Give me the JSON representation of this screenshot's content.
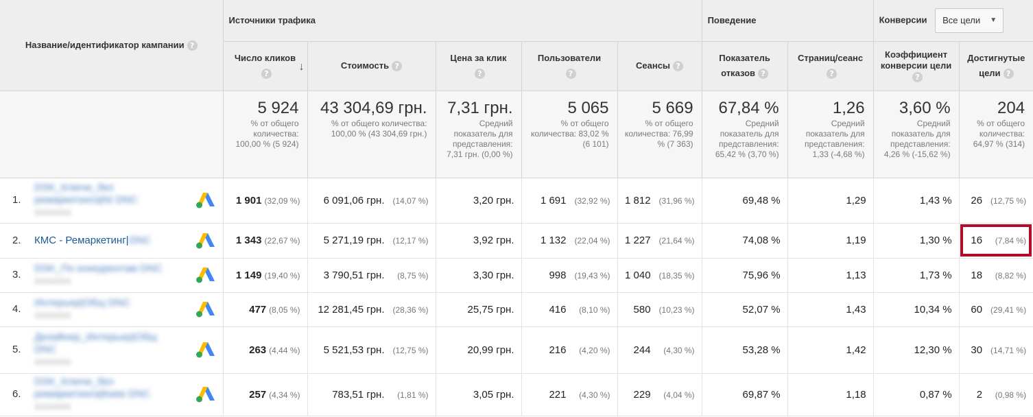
{
  "header": {
    "campaign": "Название/идентификатор кампании",
    "groups": {
      "traffic": "Источники трафика",
      "behavior": "Поведение",
      "conversions": "Конверсии"
    },
    "goal_select": "Все цели",
    "columns": {
      "clicks": "Число кликов",
      "cost": "Стоимость",
      "cpc": "Цена за клик",
      "users": "Пользователи",
      "sessions": "Сеансы",
      "bounce": "Показатель отказов",
      "pages": "Страниц/сеанс",
      "conv_rate": "Коэффициент конверсии цели",
      "goals": "Достигнутые цели"
    },
    "help": "?"
  },
  "summary": {
    "clicks": {
      "value": "5 924",
      "sub": "% от общего количества: 100,00 % (5 924)"
    },
    "cost": {
      "value": "43 304,69 грн.",
      "sub": "% от общего количества: 100,00 % (43 304,69 грн.)"
    },
    "cpc": {
      "value": "7,31 грн.",
      "sub": "Средний показатель для представления: 7,31 грн. (0,00 %)"
    },
    "users": {
      "value": "5 065",
      "sub": "% от общего количества: 83,02 % (6 101)"
    },
    "sessions": {
      "value": "5 669",
      "sub": "% от общего количества: 76,99 % (7 363)"
    },
    "bounce": {
      "value": "67,84 %",
      "sub": "Средний показатель для представления: 65,42 % (3,70 %)"
    },
    "pages": {
      "value": "1,26",
      "sub": "Средний показатель для представления: 1,33 (-4,68 %)"
    },
    "conv_rate": {
      "value": "3,60 %",
      "sub": "Средний показатель для представления: 4,26 % (-15,62 %)"
    },
    "goals": {
      "value": "204",
      "sub": "% от общего количества: 64,97 % (314)"
    }
  },
  "rows": [
    {
      "idx": "1.",
      "name": "DSK_Ключи_без ремаркетинга|NI DNC",
      "id": "1111111111",
      "clicks": "1 901",
      "clicks_pct": "(32,09 %)",
      "cost": "6 091,06 грн.",
      "cost_pct": "(14,07 %)",
      "cpc": "3,20 грн.",
      "users": "1 691",
      "users_pct": "(32,92 %)",
      "sessions": "1 812",
      "sessions_pct": "(31,96 %)",
      "bounce": "69,48 %",
      "pages": "1,29",
      "conv_rate": "1,43 %",
      "goals": "26",
      "goals_pct": "(12,75 %)"
    },
    {
      "idx": "2.",
      "name": "КМС - Ремаркетинг|",
      "name_blur": "DNC",
      "id": "",
      "clicks": "1 343",
      "clicks_pct": "(22,67 %)",
      "cost": "5 271,19 грн.",
      "cost_pct": "(12,17 %)",
      "cpc": "3,92 грн.",
      "users": "1 132",
      "users_pct": "(22,04 %)",
      "sessions": "1 227",
      "sessions_pct": "(21,64 %)",
      "bounce": "74,08 %",
      "pages": "1,19",
      "conv_rate": "1,30 %",
      "goals": "16",
      "goals_pct": "(7,84 %)"
    },
    {
      "idx": "3.",
      "name": "DSK_По конкурентам DNC",
      "id": "1111111111",
      "clicks": "1 149",
      "clicks_pct": "(19,40 %)",
      "cost": "3 790,51 грн.",
      "cost_pct": "(8,75 %)",
      "cpc": "3,30 грн.",
      "users": "998",
      "users_pct": "(19,43 %)",
      "sessions": "1 040",
      "sessions_pct": "(18,35 %)",
      "bounce": "75,96 %",
      "pages": "1,13",
      "conv_rate": "1,73 %",
      "goals": "18",
      "goals_pct": "(8,82 %)"
    },
    {
      "idx": "4.",
      "name": "Интерьер|Общ DNC",
      "id": "1111111111",
      "clicks": "477",
      "clicks_pct": "(8,05 %)",
      "cost": "12 281,45 грн.",
      "cost_pct": "(28,36 %)",
      "cpc": "25,75 грн.",
      "users": "416",
      "users_pct": "(8,10 %)",
      "sessions": "580",
      "sessions_pct": "(10,23 %)",
      "bounce": "52,07 %",
      "pages": "1,43",
      "conv_rate": "10,34 %",
      "goals": "60",
      "goals_pct": "(29,41 %)"
    },
    {
      "idx": "5.",
      "name": "Дизайнер_Интерьер|Общ DNC",
      "id": "1111111111",
      "clicks": "263",
      "clicks_pct": "(4,44 %)",
      "cost": "5 521,53 грн.",
      "cost_pct": "(12,75 %)",
      "cpc": "20,99 грн.",
      "users": "216",
      "users_pct": "(4,20 %)",
      "sessions": "244",
      "sessions_pct": "(4,30 %)",
      "bounce": "53,28 %",
      "pages": "1,42",
      "conv_rate": "12,30 %",
      "goals": "30",
      "goals_pct": "(14,71 %)"
    },
    {
      "idx": "6.",
      "name": "DSK_Ключи_без ремаркетинга|Киев DNC",
      "id": "1111111111",
      "clicks": "257",
      "clicks_pct": "(4,34 %)",
      "cost": "783,51 грн.",
      "cost_pct": "(1,81 %)",
      "cpc": "3,05 грн.",
      "users": "221",
      "users_pct": "(4,30 %)",
      "sessions": "229",
      "sessions_pct": "(4,04 %)",
      "bounce": "69,87 %",
      "pages": "1,18",
      "conv_rate": "0,87 %",
      "goals": "2",
      "goals_pct": "(0,98 %)"
    }
  ],
  "colors": {
    "highlight": "#b10c27",
    "link": "#1a5a96"
  },
  "icons": {
    "row_icon": "google-ads-icon",
    "sort": "sort-desc-icon"
  }
}
